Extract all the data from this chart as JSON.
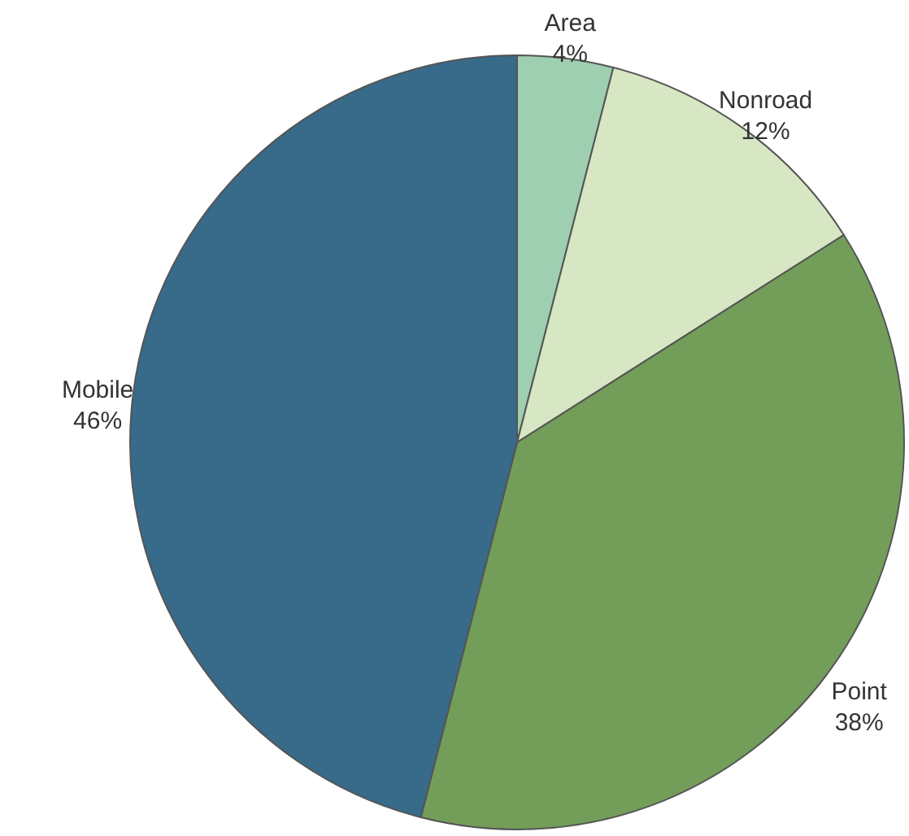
{
  "chart_data": {
    "type": "pie",
    "categories": [
      "Area",
      "Nonroad",
      "Point",
      "Mobile"
    ],
    "values": [
      4,
      12,
      38,
      46
    ],
    "colors": [
      "#9dcfb0",
      "#d7e6c3",
      "#739e5a",
      "#386a8a"
    ],
    "value_labels": [
      "4%",
      "12%",
      "38%",
      "46%"
    ]
  }
}
